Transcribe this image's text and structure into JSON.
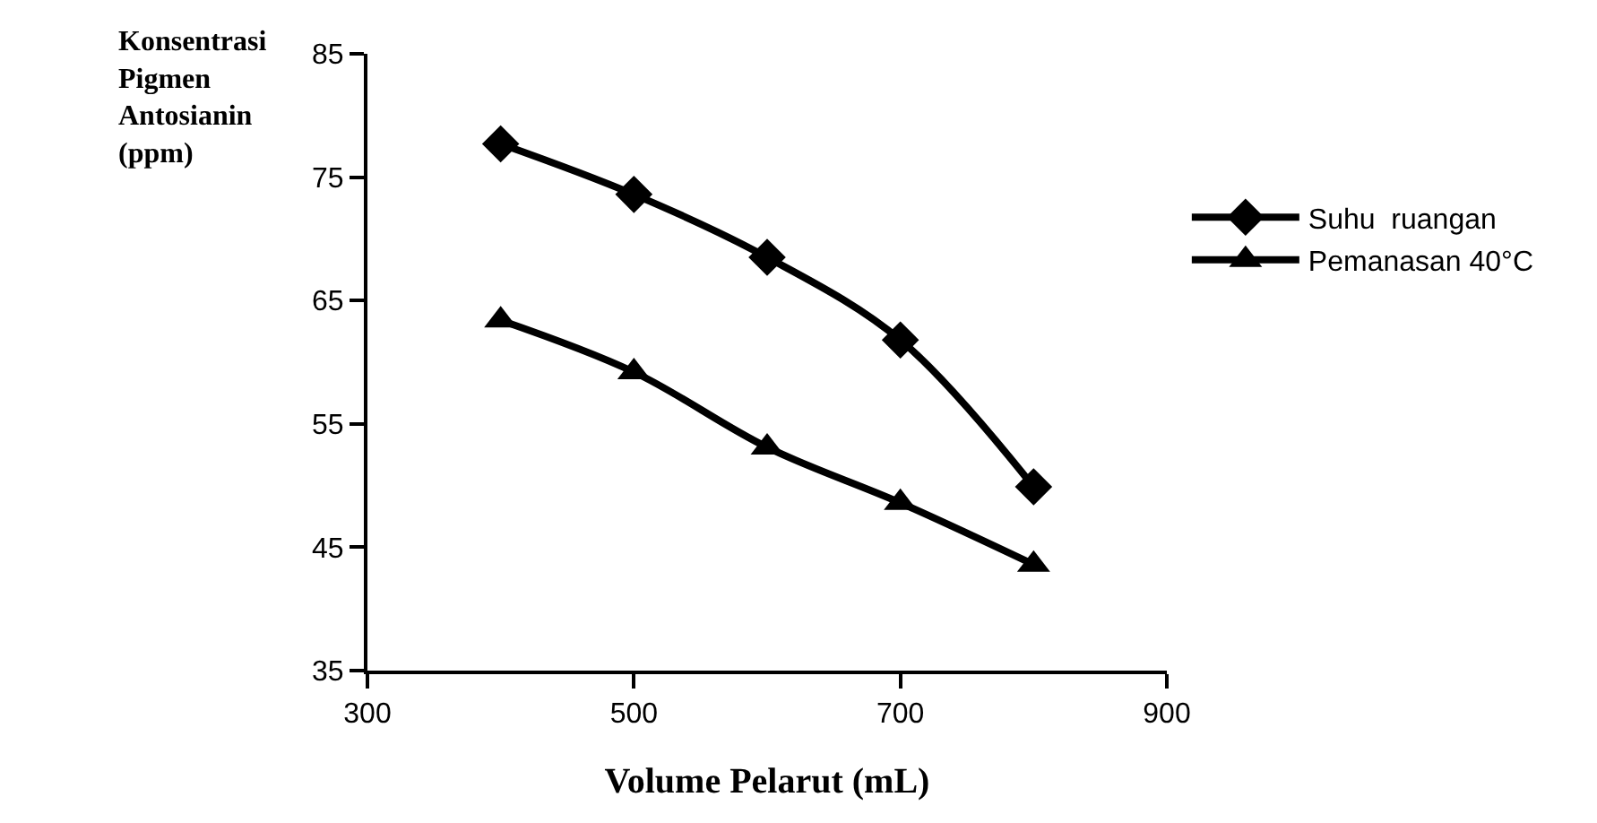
{
  "chart_data": {
    "type": "line",
    "xlabel": "Volume Pelarut (mL)",
    "ylabel": "Konsentrasi Pigmen Antosianin (ppm)",
    "x": [
      400,
      500,
      600,
      700,
      800
    ],
    "series": [
      {
        "name": "Suhu  ruangan",
        "color": "#000000",
        "marker": "diamond",
        "values": [
          77.7,
          73.6,
          68.5,
          61.8,
          49.9
        ]
      },
      {
        "name": "Pemanasan 40°C",
        "color": "#000000",
        "marker": "triangle",
        "values": [
          63.4,
          59.2,
          53.1,
          48.6,
          43.6
        ]
      }
    ],
    "xlim": [
      300,
      900
    ],
    "xticks": [
      300,
      500,
      700,
      900
    ],
    "ylim": [
      35,
      85
    ],
    "yticks": [
      35,
      45,
      55,
      65,
      75,
      85
    ],
    "legend": "right",
    "line_style": "solid"
  }
}
